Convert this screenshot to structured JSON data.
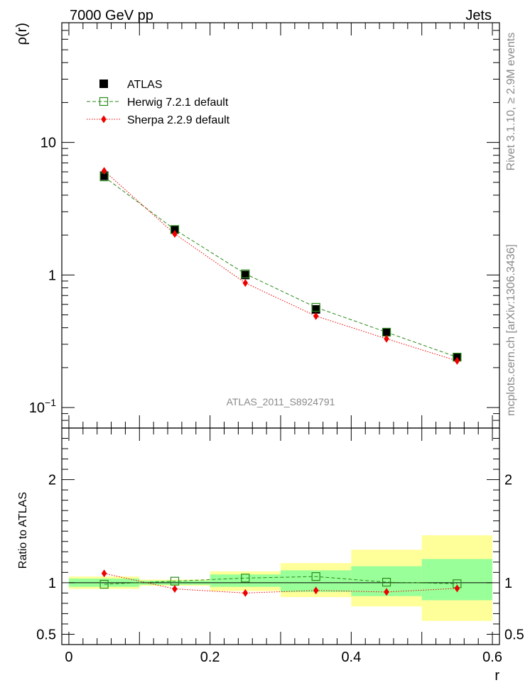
{
  "header": {
    "left": "7000 GeV pp",
    "right": "Jets"
  },
  "side_text": {
    "top": "Rivet 3.1.10, ≥ 2.9M events",
    "bottom": "mcplots.cern.ch [arXiv:1306.3436]"
  },
  "watermark": "ATLAS_2011_S8924791",
  "colors": {
    "atlas": "#000000",
    "herwig": "#2a8a1a",
    "sherpa": "#ee0000",
    "band_inner": "#99ff99",
    "band_outer": "#ffff99"
  },
  "chart_data": [
    {
      "type": "scatter",
      "panel": "main",
      "ylabel": "ρ(r)",
      "yscale": "log",
      "ylim": [
        0.07,
        80
      ],
      "xlim": [
        -0.01,
        0.61
      ],
      "ytick_labels": [
        {
          "value": 0.1,
          "base": "10",
          "exp": "−1"
        },
        {
          "value": 1,
          "base": "1",
          "exp": ""
        },
        {
          "value": 10,
          "base": "10",
          "exp": ""
        }
      ],
      "legend_position": "top-left",
      "series": [
        {
          "name": "ATLAS",
          "marker": "filled-square",
          "x": [
            0.05,
            0.15,
            0.25,
            0.35,
            0.45,
            0.55
          ],
          "y": [
            5.6,
            2.2,
            1.0,
            0.55,
            0.37,
            0.24
          ]
        },
        {
          "name": "Herwig 7.2.1 default",
          "marker": "open-square",
          "line": "dashed",
          "x": [
            0.05,
            0.15,
            0.25,
            0.35,
            0.45,
            0.55
          ],
          "y": [
            5.5,
            2.2,
            1.02,
            0.57,
            0.37,
            0.24
          ]
        },
        {
          "name": "Sherpa 2.2.9 default",
          "marker": "diamond",
          "line": "dotted",
          "x": [
            0.05,
            0.15,
            0.25,
            0.35,
            0.45,
            0.55
          ],
          "y": [
            6.1,
            2.04,
            0.87,
            0.49,
            0.33,
            0.225
          ]
        }
      ]
    },
    {
      "type": "scatter",
      "panel": "ratio",
      "ylabel": "Ratio to ATLAS",
      "xlabel": "r",
      "ylim": [
        0.4,
        2.5
      ],
      "xlim": [
        -0.01,
        0.61
      ],
      "yticks": [
        0.5,
        1,
        2
      ],
      "ytick_labels": [
        "0.5",
        "1",
        "2"
      ],
      "xticks": [
        0,
        0.2,
        0.4,
        0.6
      ],
      "xtick_labels": [
        "0",
        "0.2",
        "0.4",
        "0.6"
      ],
      "bands": {
        "x_edges": [
          0.0,
          0.1,
          0.2,
          0.3,
          0.4,
          0.5,
          0.6
        ],
        "inner": [
          [
            0.96,
            1.04
          ],
          [
            0.98,
            1.02
          ],
          [
            0.96,
            1.08
          ],
          [
            0.91,
            1.12
          ],
          [
            0.87,
            1.16
          ],
          [
            0.83,
            1.23
          ]
        ],
        "outer": [
          [
            0.94,
            1.06
          ],
          [
            0.97,
            1.03
          ],
          [
            0.92,
            1.11
          ],
          [
            0.86,
            1.19
          ],
          [
            0.77,
            1.32
          ],
          [
            0.63,
            1.46
          ]
        ]
      },
      "series": [
        {
          "name": "Herwig 7.2.1 default",
          "x": [
            0.05,
            0.15,
            0.25,
            0.35,
            0.45,
            0.55
          ],
          "y": [
            0.985,
            1.015,
            1.045,
            1.06,
            1.005,
            0.99
          ]
        },
        {
          "name": "Sherpa 2.2.9 default",
          "x": [
            0.05,
            0.15,
            0.25,
            0.35,
            0.45,
            0.55
          ],
          "y": [
            1.09,
            0.94,
            0.9,
            0.925,
            0.91,
            0.945
          ]
        }
      ]
    }
  ]
}
